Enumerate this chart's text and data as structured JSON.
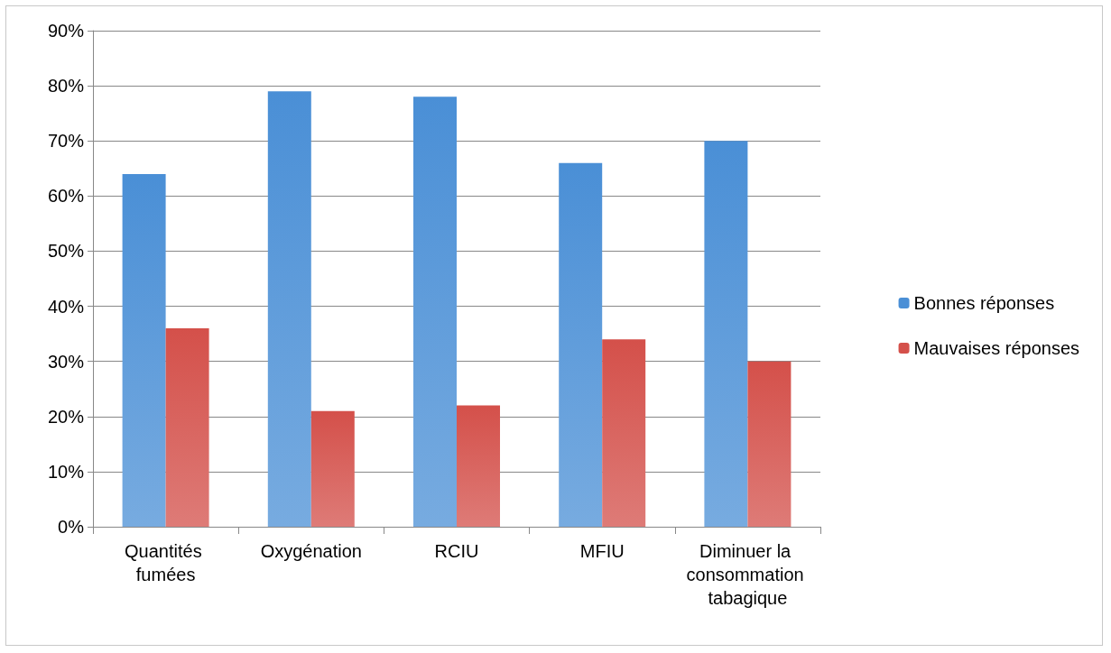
{
  "chart_data": {
    "type": "bar",
    "categories": [
      "Quantités fumées",
      "Oxygénation",
      "RCIU",
      "MFIU",
      "Diminuer la consommation tabagique"
    ],
    "series": [
      {
        "name": "Bonnes réponses",
        "color": "#4a8fd6",
        "values": [
          64,
          79,
          78,
          66,
          70
        ]
      },
      {
        "name": "Mauvaises réponses",
        "color": "#d4504a",
        "values": [
          36,
          21,
          22,
          34,
          30
        ]
      }
    ],
    "ylim": [
      0,
      90
    ],
    "yticks": [
      {
        "value": 0,
        "label": "0%"
      },
      {
        "value": 10,
        "label": "10%"
      },
      {
        "value": 20,
        "label": "20%"
      },
      {
        "value": 30,
        "label": "30%"
      },
      {
        "value": 40,
        "label": "40%"
      },
      {
        "value": 50,
        "label": "50%"
      },
      {
        "value": 60,
        "label": "60%"
      },
      {
        "value": 70,
        "label": "70%"
      },
      {
        "value": 80,
        "label": "80%"
      },
      {
        "value": 90,
        "label": "90%"
      }
    ],
    "grid": "y",
    "legend": "right"
  }
}
